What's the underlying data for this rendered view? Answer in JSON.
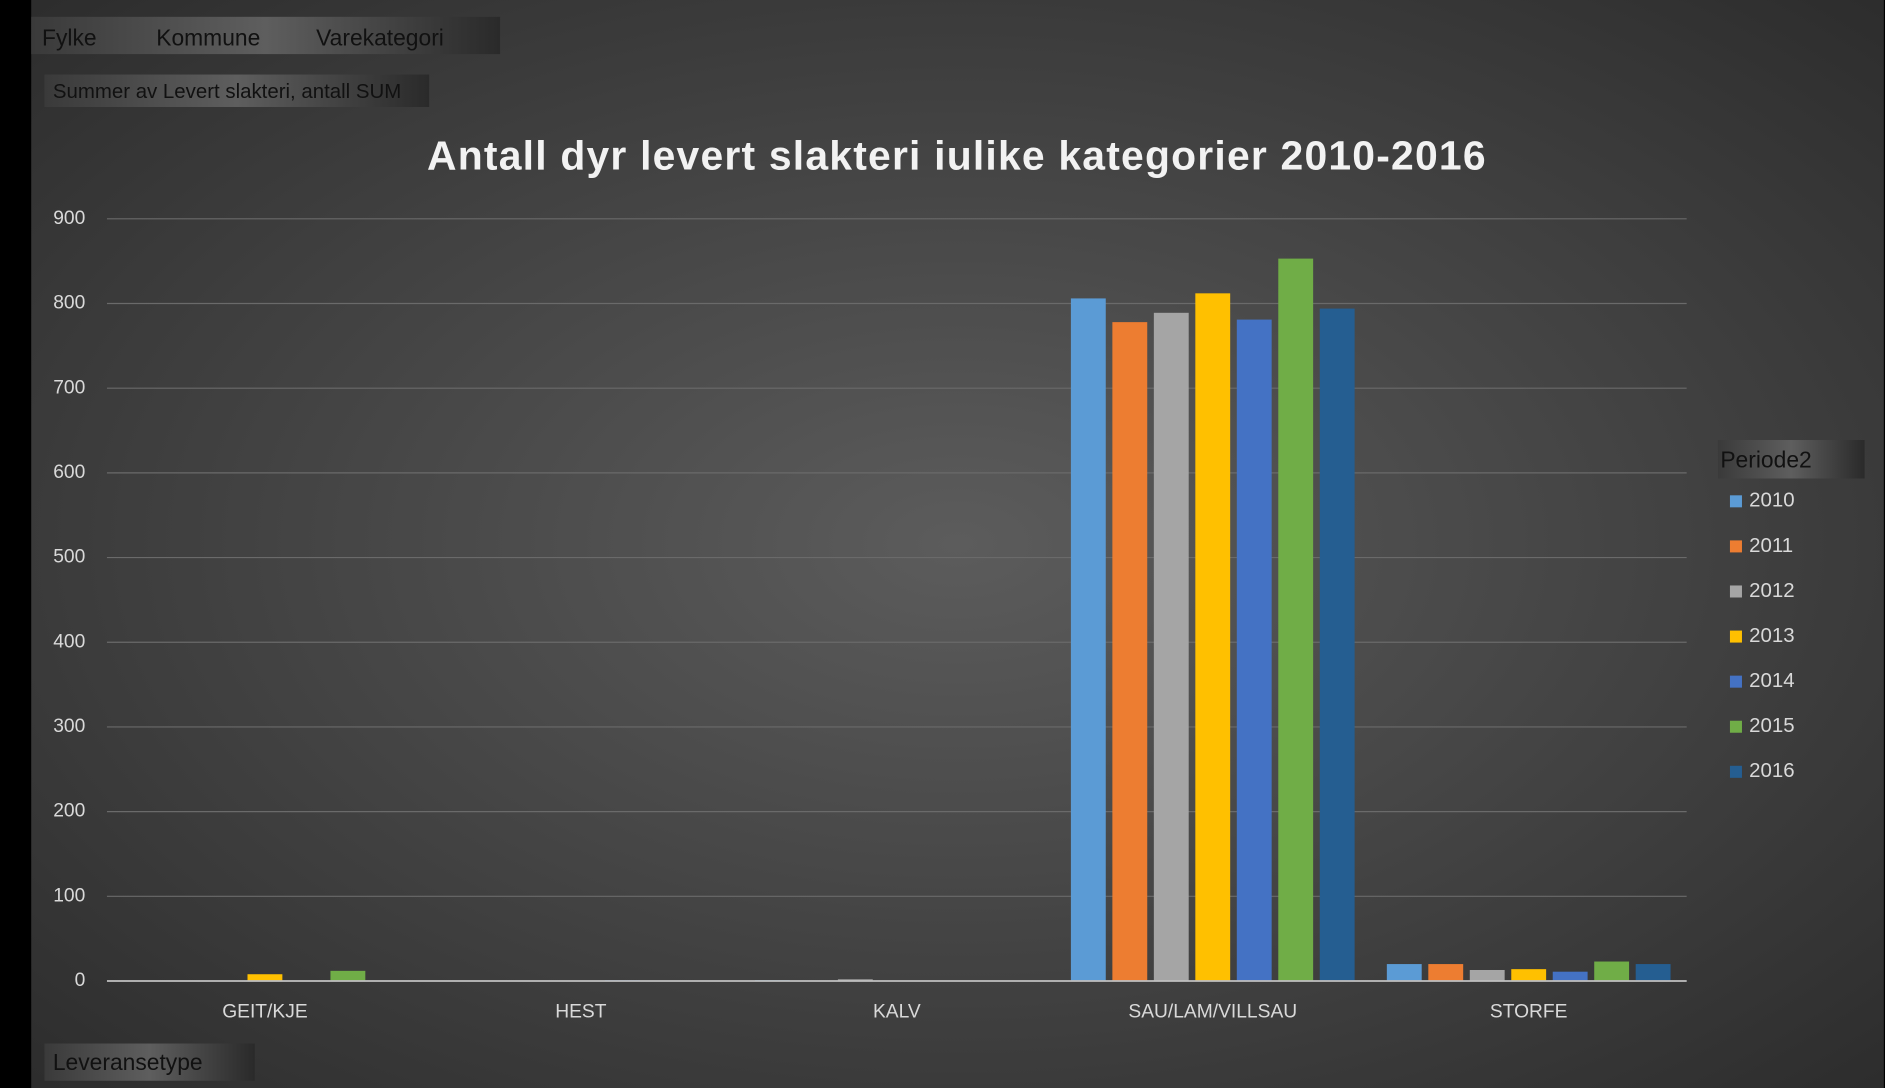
{
  "pivot_fields": {
    "filters": [
      "Fylke",
      "Kommune",
      "Varekategori"
    ],
    "value_field": "Summer av Levert slakteri, antall SUM",
    "axis_field": "Leveransetype"
  },
  "chart_data": {
    "type": "bar",
    "title": "Antall dyr levert slakteri  iulike kategorier  2010-2016",
    "categories": [
      "GEIT/KJE",
      "HEST",
      "KALV",
      "SAU/LAM/VILLSAU",
      "STORFE"
    ],
    "legend_title": "Periode2",
    "legend": "right",
    "grid": true,
    "ylim": [
      0,
      900
    ],
    "yticks": [
      0,
      100,
      200,
      300,
      400,
      500,
      600,
      700,
      800,
      900
    ],
    "series": [
      {
        "name": "2010",
        "color": "#5b9bd5",
        "values": [
          null,
          null,
          1,
          806,
          20
        ]
      },
      {
        "name": "2011",
        "color": "#ed7d31",
        "values": [
          null,
          null,
          null,
          778,
          20
        ]
      },
      {
        "name": "2012",
        "color": "#a5a5a5",
        "values": [
          null,
          null,
          2,
          789,
          13
        ]
      },
      {
        "name": "2013",
        "color": "#ffc000",
        "values": [
          8,
          null,
          null,
          812,
          14
        ]
      },
      {
        "name": "2014",
        "color": "#4472c4",
        "values": [
          null,
          1,
          null,
          781,
          11
        ]
      },
      {
        "name": "2015",
        "color": "#70ad47",
        "values": [
          12,
          null,
          null,
          853,
          23
        ]
      },
      {
        "name": "2016",
        "color": "#255e91",
        "values": [
          null,
          null,
          null,
          794,
          20
        ]
      }
    ]
  }
}
